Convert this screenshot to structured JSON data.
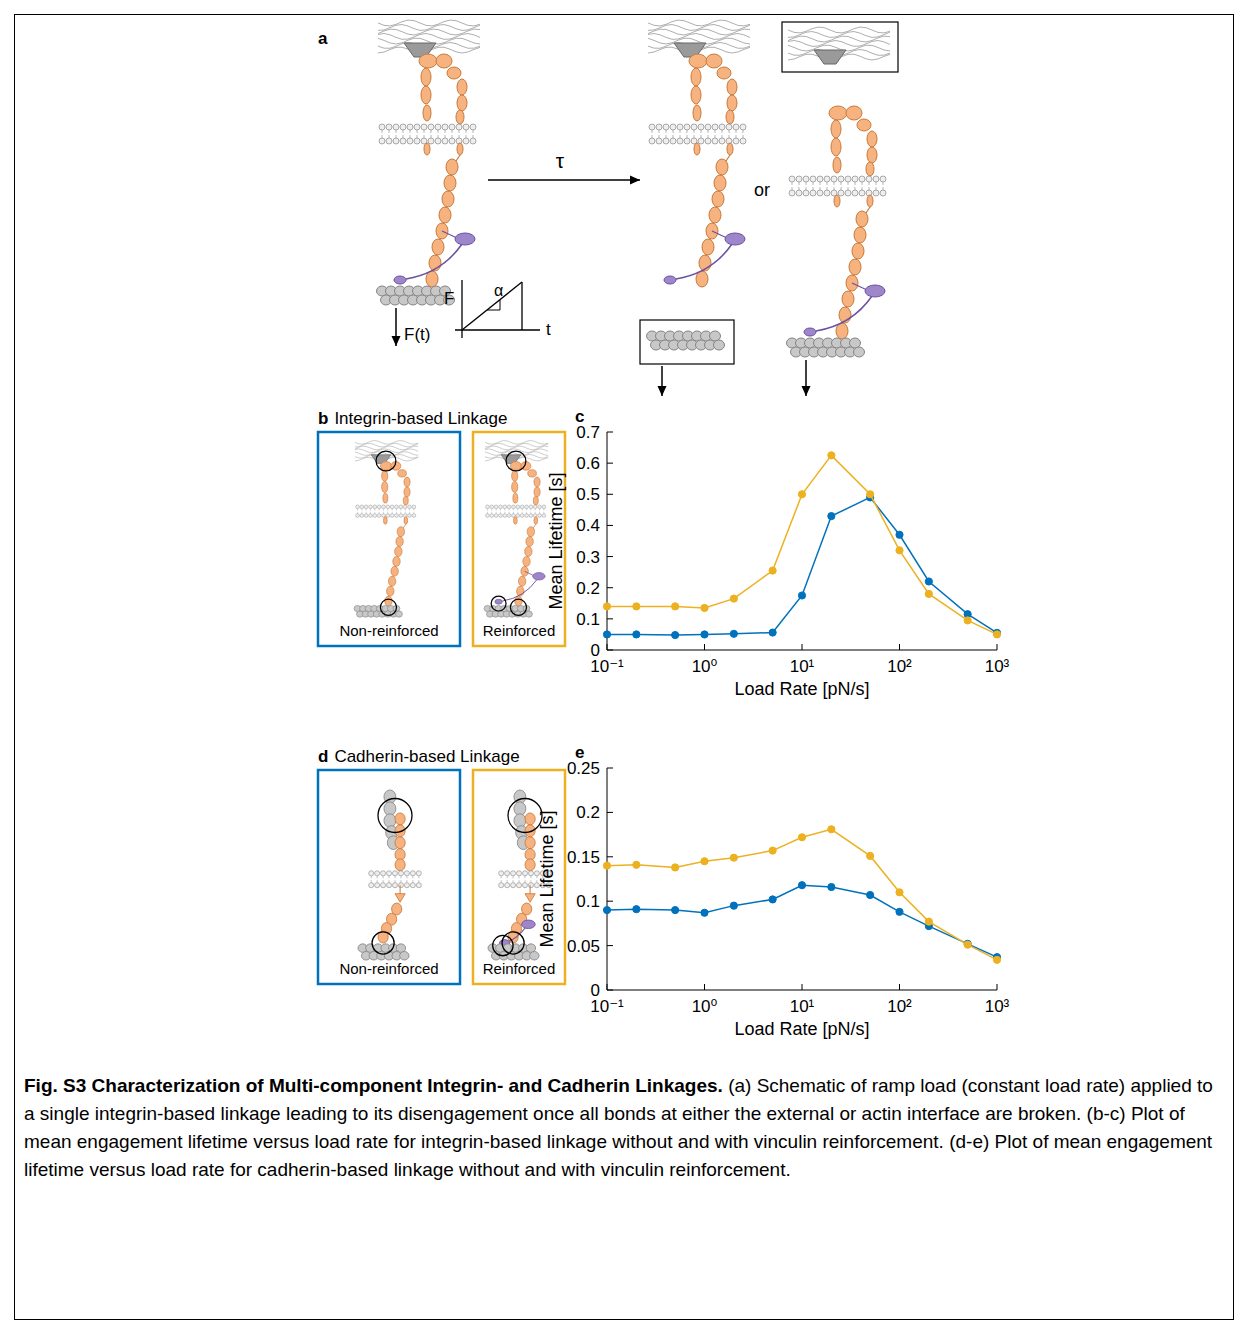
{
  "figure": {
    "panel_labels": [
      "a",
      "b",
      "c",
      "d",
      "e"
    ],
    "schematic": {
      "tau": "τ",
      "or": "or",
      "force": "F(t)",
      "ramp_y": "F",
      "ramp_x": "t",
      "ramp_slope": "α"
    },
    "caption": {
      "title": "Fig. S3 Characterization of Multi-component Integrin- and Cadherin Linkages.",
      "text": "(a) Schematic of ramp load (constant load rate) applied to a single integrin-based linkage leading to its disengagement once all bonds at either the external or actin interface are broken. (b-c) Plot of mean engagement lifetime versus load rate for integrin-based linkage without and with vinculin reinforcement. (d-e) Plot of mean engagement lifetime versus load rate for cadherin-based linkage without and with vinculin reinforcement."
    }
  },
  "chart_data": [
    {
      "type": "line",
      "title": "Integrin-based Linkage",
      "x_label": "Load Rate [pN/s]",
      "y_label": "Mean Lifetime [s]",
      "log": "x",
      "marker": "circle",
      "x": [
        0.1,
        0.2,
        0.5,
        1,
        2,
        5,
        10,
        20,
        50,
        100,
        200,
        500,
        1000
      ],
      "xlim": [
        0.1,
        1000
      ],
      "xticks": [
        {
          "value": 0.1,
          "label": "10⁻¹"
        },
        {
          "value": 1,
          "label": "10⁰"
        },
        {
          "value": 10,
          "label": "10¹"
        },
        {
          "value": 100,
          "label": "10²"
        },
        {
          "value": 1000,
          "label": "10³"
        }
      ],
      "ylim": [
        0,
        0.7
      ],
      "yticks": [
        0,
        0.1,
        0.2,
        0.3,
        0.4,
        0.5,
        0.6,
        0.7
      ],
      "series": [
        {
          "name": "Non-reinforced",
          "color": "#0072BD",
          "values": [
            0.05,
            0.05,
            0.048,
            0.05,
            0.052,
            0.056,
            0.175,
            0.43,
            0.49,
            0.37,
            0.22,
            0.115,
            0.055
          ]
        },
        {
          "name": "Reinforced",
          "color": "#EDB120",
          "values": [
            0.14,
            0.14,
            0.14,
            0.135,
            0.165,
            0.255,
            0.5,
            0.625,
            0.5,
            0.32,
            0.18,
            0.095,
            0.05
          ]
        }
      ]
    },
    {
      "type": "line",
      "title": "Cadherin-based Linkage",
      "x_label": "Load Rate [pN/s]",
      "y_label": "Mean Lifetime [s]",
      "log": "x",
      "marker": "circle",
      "x": [
        0.1,
        0.2,
        0.5,
        1,
        2,
        5,
        10,
        20,
        50,
        100,
        200,
        500,
        1000
      ],
      "xlim": [
        0.1,
        1000
      ],
      "xticks": [
        {
          "value": 0.1,
          "label": "10⁻¹"
        },
        {
          "value": 1,
          "label": "10⁰"
        },
        {
          "value": 10,
          "label": "10¹"
        },
        {
          "value": 100,
          "label": "10²"
        },
        {
          "value": 1000,
          "label": "10³"
        }
      ],
      "ylim": [
        0,
        0.25
      ],
      "yticks": [
        0,
        0.05,
        0.1,
        0.15,
        0.2,
        0.25
      ],
      "series": [
        {
          "name": "Non-reinforced",
          "color": "#0072BD",
          "values": [
            0.09,
            0.091,
            0.09,
            0.087,
            0.095,
            0.102,
            0.118,
            0.116,
            0.107,
            0.088,
            0.072,
            0.052,
            0.037
          ]
        },
        {
          "name": "Reinforced",
          "color": "#EDB120",
          "values": [
            0.14,
            0.141,
            0.138,
            0.145,
            0.149,
            0.157,
            0.172,
            0.181,
            0.151,
            0.11,
            0.077,
            0.051,
            0.034
          ]
        }
      ]
    }
  ]
}
